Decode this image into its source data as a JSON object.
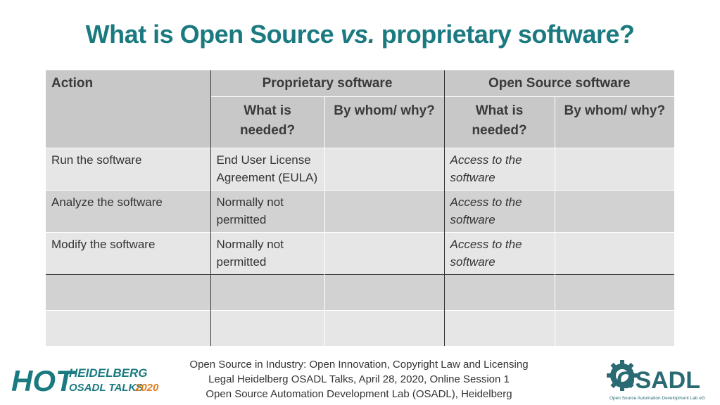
{
  "slide": {
    "title_part1": "What is Open Source",
    "title_vs": "vs.",
    "title_part2": "proprietary software?"
  },
  "table": {
    "header": {
      "action": "Action",
      "proprietary": "Proprietary software",
      "open_source": "Open Source software",
      "what_needed": "What is needed?",
      "by_whom": "By whom/ why?"
    },
    "rows": [
      {
        "action": "Run the software",
        "prop_need": "End User License Agreement (EULA)",
        "prop_who": "",
        "os_need": "Access to the software",
        "os_who": ""
      },
      {
        "action": "Analyze the software",
        "prop_need": "Normally not permitted",
        "prop_who": "",
        "os_need": "Access to the software",
        "os_who": ""
      },
      {
        "action": "Modify the software",
        "prop_need": "Normally not permitted",
        "prop_who": "",
        "os_need": "Access to the software",
        "os_who": ""
      },
      {
        "action": "",
        "prop_need": "",
        "prop_who": "",
        "os_need": "",
        "os_who": ""
      },
      {
        "action": "",
        "prop_need": "",
        "prop_who": "",
        "os_need": "",
        "os_who": ""
      }
    ]
  },
  "footer": {
    "line1": "Open Source in Industry: Open Innovation, Copyright Law and Licensing",
    "line2": "Legal Heidelberg OSADL Talks, April 28, 2020, Online Session 1",
    "line3": "Open Source Automation Development Lab (OSADL), Heidelberg"
  },
  "logos": {
    "hot_big": "HOT",
    "hot_line1": "HEIDELBERG",
    "hot_line2_a": "OSADL TALKS",
    "hot_line2_b": "2020",
    "osadl_name": "OSADL",
    "osadl_sub": "Open Source Automation Development Lab eG",
    "hot_color": "#1a7a80",
    "hot_accent": "#e07b1f",
    "osadl_color": "#2a6a73"
  }
}
